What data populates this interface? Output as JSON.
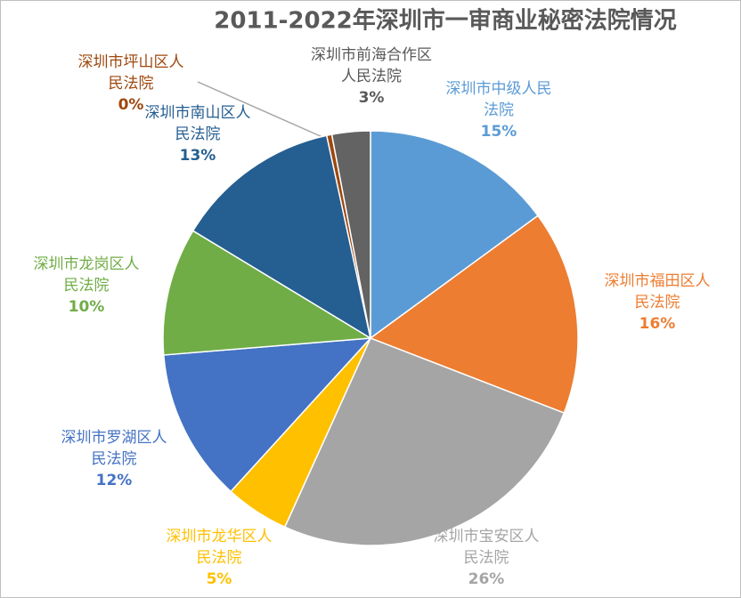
{
  "chart_data": {
    "type": "pie",
    "title": "2011-2022年深圳市一审商业秘密法院情况",
    "categories": [
      "深圳市中级人民法院",
      "深圳市福田区人民法院",
      "深圳市宝安区人民法院",
      "深圳市龙华区人民法院",
      "深圳市罗湖区人民法院",
      "深圳市龙岗区人民法院",
      "深圳市南山区人民法院",
      "深圳市坪山区人民法院",
      "深圳市前海合作区人民法院"
    ],
    "values": [
      15,
      16,
      26,
      5,
      12,
      10,
      13,
      0.4,
      3
    ],
    "value_labels": [
      "15%",
      "16%",
      "26%",
      "5%",
      "12%",
      "10%",
      "13%",
      "0%",
      "3%"
    ],
    "colors": [
      "#5b9bd5",
      "#ed7d31",
      "#a5a5a5",
      "#ffc000",
      "#4472c4",
      "#70ad47",
      "#255e91",
      "#9e480e",
      "#636363"
    ]
  }
}
